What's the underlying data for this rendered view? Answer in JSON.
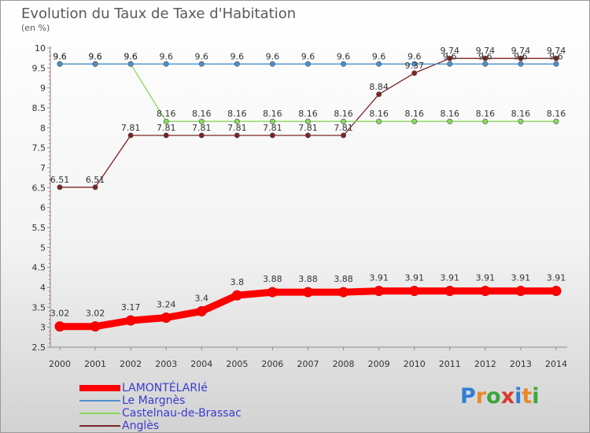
{
  "chart_data": {
    "type": "line",
    "title": "Evolution du Taux de Taxe d'Habitation",
    "ylabel": "(en %)",
    "xlabel": "",
    "ylim": [
      2.5,
      10
    ],
    "yticks": [
      "2.5",
      "3",
      "3.5",
      "4",
      "4.5",
      "5",
      "5.5",
      "6",
      "6.5",
      "7",
      "7.5",
      "8",
      "8.5",
      "9",
      "9.5",
      "10"
    ],
    "x": [
      "2000",
      "2001",
      "2002",
      "2003",
      "2004",
      "2005",
      "2006",
      "2007",
      "2008",
      "2009",
      "2010",
      "2011",
      "2012",
      "2013",
      "2014"
    ],
    "series": [
      {
        "name": "LAMONTÉLARIé",
        "color": "#ff0000",
        "values": [
          3.02,
          3.02,
          3.17,
          3.24,
          3.4,
          3.8,
          3.88,
          3.88,
          3.88,
          3.91,
          3.91,
          3.91,
          3.91,
          3.91,
          3.91
        ],
        "labels": [
          "3.02",
          "3.02",
          "3.17",
          "3.24",
          "3.4",
          "3.8",
          "3.88",
          "3.88",
          "3.88",
          "3.91",
          "3.91",
          "3.91",
          "3.91",
          "3.91",
          "3.91"
        ]
      },
      {
        "name": "Le Margnès",
        "color": "#4d8fc8",
        "values": [
          9.6,
          9.6,
          9.6,
          9.6,
          9.6,
          9.6,
          9.6,
          9.6,
          9.6,
          9.6,
          9.6,
          9.6,
          9.6,
          9.6,
          9.6
        ],
        "labels": [
          "9.6",
          "9.6",
          "9.6",
          "9.6",
          "9.6",
          "9.6",
          "9.6",
          "9.6",
          "9.6",
          "9.6",
          "9.6",
          "9.6",
          "9.6",
          "9.6",
          "9.6"
        ]
      },
      {
        "name": "Castelnau-de-Brassac",
        "color": "#86d95a",
        "values": [
          9.6,
          9.6,
          9.6,
          8.16,
          8.16,
          8.16,
          8.16,
          8.16,
          8.16,
          8.16,
          8.16,
          8.16,
          8.16,
          8.16,
          8.16
        ],
        "labels": [
          "9.6",
          "9.6",
          "9.6",
          "8.16",
          "8.16",
          "8.16",
          "8.16",
          "8.16",
          "8.16",
          "8.16",
          "8.16",
          "8.16",
          "8.16",
          "8.16",
          "8.16"
        ]
      },
      {
        "name": "Anglès",
        "color": "#7a2424",
        "values": [
          6.51,
          6.51,
          7.81,
          7.81,
          7.81,
          7.81,
          7.81,
          7.81,
          7.81,
          8.84,
          9.37,
          9.74,
          9.74,
          9.74,
          9.74
        ],
        "labels": [
          "6.51",
          "6.51",
          "7.81",
          "7.81",
          "7.81",
          "7.81",
          "7.81",
          "7.81",
          "7.81",
          "8.84",
          "9.37",
          "9.74",
          "9.74",
          "9.74",
          "9.74"
        ]
      }
    ],
    "legend_position": "bottom-left",
    "grid": false
  },
  "brand": {
    "letters": [
      "P",
      "r",
      "o",
      "x",
      "i",
      "t",
      "i"
    ],
    "colors": [
      "#2e7fd6",
      "#e8892a",
      "#3aa63a",
      "#d83a2a",
      "#2e7fd6",
      "#e8892a",
      "#3aa63a"
    ]
  }
}
